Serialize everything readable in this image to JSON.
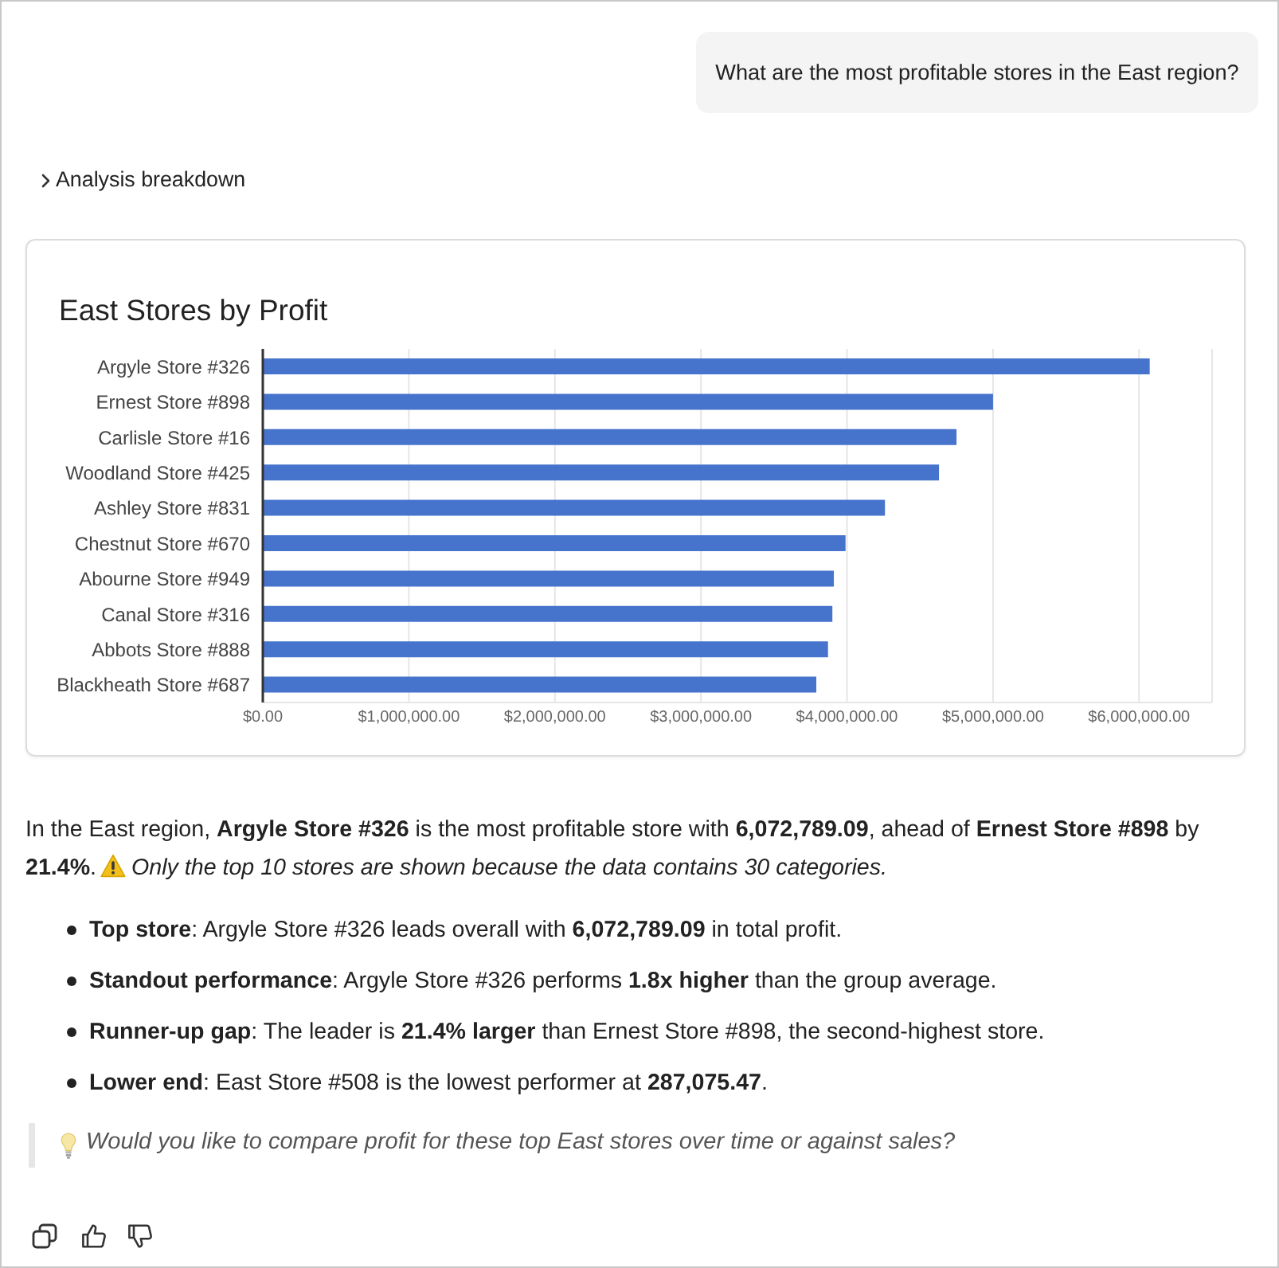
{
  "chart_data": {
    "type": "bar",
    "orientation": "horizontal",
    "title": "East Stores by Profit",
    "categories": [
      "Argyle Store #326",
      "Ernest Store #898",
      "Carlisle Store #16",
      "Woodland Store #425",
      "Ashley Store #831",
      "Chestnut Store #670",
      "Abourne Store #949",
      "Canal Store #316",
      "Abbots Store #888",
      "Blackheath Store #687"
    ],
    "values": [
      6072789.09,
      5000000,
      4750000,
      4630000,
      4260000,
      3990000,
      3910000,
      3900000,
      3870000,
      3790000
    ],
    "color": "#4674cc",
    "xlim": [
      0,
      6500000
    ],
    "xticks": [
      {
        "value": 0,
        "label": "$0.00"
      },
      {
        "value": 1000000,
        "label": "$1,000,000.00"
      },
      {
        "value": 2000000,
        "label": "$2,000,000.00"
      },
      {
        "value": 3000000,
        "label": "$3,000,000.00"
      },
      {
        "value": 4000000,
        "label": "$4,000,000.00"
      },
      {
        "value": 5000000,
        "label": "$5,000,000.00"
      },
      {
        "value": 6000000,
        "label": "$6,000,000.00"
      }
    ],
    "grid": "x",
    "annotations": [
      "What are the most profitable stores in the East region?",
      "Analysis breakdown",
      "In the East region, ",
      "Argyle Store #326",
      " is the most profitable store with ",
      "6,072,789.09",
      ", ahead of ",
      "Ernest Store #898",
      " by ",
      "21.4%",
      ".",
      "Only the top 10 stores are shown because the data contains 30 categories.",
      "Top store",
      ": Argyle Store #326 leads overall with ",
      "6,072,789.09",
      " in total profit.",
      "Standout performance",
      ": Argyle Store #326 performs ",
      "1.8x higher",
      " than the group average.",
      "Runner-up gap",
      ": The leader is ",
      "21.4% larger",
      " than Ernest Store #898, the second-highest store.",
      "Lower end",
      ": East Store #508 is the lowest performer at ",
      "287,075.47",
      ".",
      "Would you like to compare profit for these top East stores over time or against sales?"
    ]
  }
}
